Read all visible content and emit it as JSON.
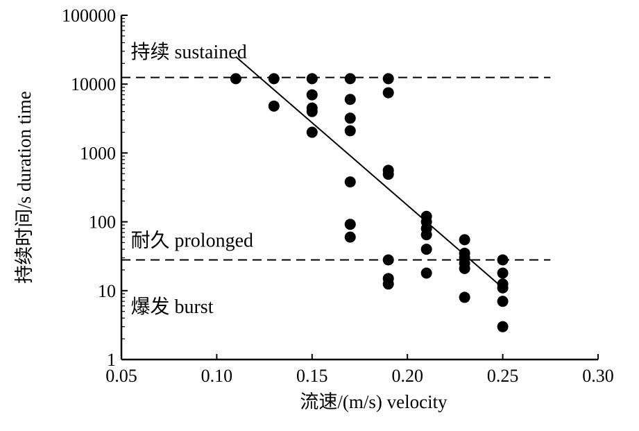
{
  "chart_data": {
    "type": "scatter",
    "xlabel": "流速/(m/s) velocity",
    "ylabel": "持续时间/s duration time",
    "xlim": [
      0.05,
      0.3
    ],
    "ylim": [
      1,
      100000
    ],
    "yscale": "log",
    "x_ticks": [
      "0.05",
      "0.10",
      "0.15",
      "0.20",
      "0.25",
      "0.30"
    ],
    "y_ticks": [
      "1",
      "10",
      "100",
      "1000",
      "10000",
      "100000"
    ],
    "grid": false,
    "annotations": [
      {
        "text": "持续 sustained",
        "x": 0.052,
        "y": 30000
      },
      {
        "text": "耐久 prolonged",
        "x": 0.052,
        "y": 55
      },
      {
        "text": "爆发 burst",
        "x": 0.052,
        "y": 6
      }
    ],
    "thresholds": [
      12500,
      28
    ],
    "trend_line": {
      "x": [
        0.11,
        0.25
      ],
      "y": [
        25000,
        11
      ]
    },
    "points": [
      {
        "x": 0.11,
        "y": 12000
      },
      {
        "x": 0.13,
        "y": 12000
      },
      {
        "x": 0.13,
        "y": 4800
      },
      {
        "x": 0.15,
        "y": 12000
      },
      {
        "x": 0.15,
        "y": 7000
      },
      {
        "x": 0.15,
        "y": 4500
      },
      {
        "x": 0.15,
        "y": 4000
      },
      {
        "x": 0.15,
        "y": 2000
      },
      {
        "x": 0.17,
        "y": 12000
      },
      {
        "x": 0.17,
        "y": 6000
      },
      {
        "x": 0.17,
        "y": 3200
      },
      {
        "x": 0.17,
        "y": 2100
      },
      {
        "x": 0.17,
        "y": 380
      },
      {
        "x": 0.17,
        "y": 92
      },
      {
        "x": 0.17,
        "y": 60
      },
      {
        "x": 0.19,
        "y": 12000
      },
      {
        "x": 0.19,
        "y": 7500
      },
      {
        "x": 0.19,
        "y": 560
      },
      {
        "x": 0.19,
        "y": 490
      },
      {
        "x": 0.19,
        "y": 28
      },
      {
        "x": 0.19,
        "y": 15
      },
      {
        "x": 0.19,
        "y": 12.5
      },
      {
        "x": 0.21,
        "y": 120
      },
      {
        "x": 0.21,
        "y": 100
      },
      {
        "x": 0.21,
        "y": 80
      },
      {
        "x": 0.21,
        "y": 65
      },
      {
        "x": 0.21,
        "y": 40
      },
      {
        "x": 0.21,
        "y": 18
      },
      {
        "x": 0.23,
        "y": 55
      },
      {
        "x": 0.23,
        "y": 35
      },
      {
        "x": 0.23,
        "y": 30
      },
      {
        "x": 0.23,
        "y": 25
      },
      {
        "x": 0.23,
        "y": 21
      },
      {
        "x": 0.23,
        "y": 8
      },
      {
        "x": 0.25,
        "y": 28
      },
      {
        "x": 0.25,
        "y": 18
      },
      {
        "x": 0.25,
        "y": 12.5
      },
      {
        "x": 0.25,
        "y": 11
      },
      {
        "x": 0.25,
        "y": 7
      },
      {
        "x": 0.25,
        "y": 3
      }
    ],
    "colors": {
      "marker": "#000000",
      "line": "#000000"
    }
  }
}
